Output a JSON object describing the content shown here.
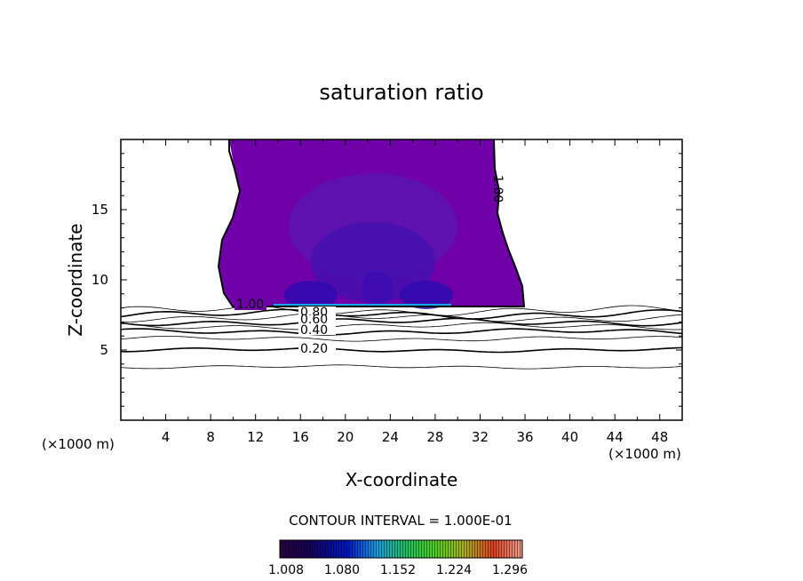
{
  "chart_data": {
    "type": "contour",
    "title": "saturation ratio",
    "xlabel": "X-coordinate",
    "ylabel": "Z-coordinate",
    "x_unit_label": "(×1000 m)",
    "z_unit_label": "(×1000 m)",
    "xlim": [
      0,
      50
    ],
    "ylim": [
      0,
      20
    ],
    "x_ticks": [
      4,
      8,
      12,
      16,
      20,
      24,
      28,
      32,
      36,
      40,
      44,
      48
    ],
    "y_ticks": [
      5,
      10,
      15
    ],
    "contour_interval_text": "CONTOUR INTERVAL = 1.000E-01",
    "contour_labels": [
      "1.00",
      "1.00",
      "0.80",
      "0.60",
      "0.40",
      "0.20"
    ],
    "colorbar": {
      "min": 1.008,
      "max": 1.32,
      "tick_labels": [
        "1.008",
        "1.080",
        "1.152",
        "1.224",
        "1.296"
      ]
    },
    "supersaturated_region": {
      "x_range": [
        10,
        36
      ],
      "z_range": [
        8.1,
        20
      ],
      "typical_value": 1.008,
      "maximum_near_base": 1.08
    },
    "contour_heights": [
      {
        "value": 0.1,
        "z": 3.8
      },
      {
        "value": 0.2,
        "z": 5.0
      },
      {
        "value": 0.3,
        "z": 5.8
      },
      {
        "value": 0.4,
        "z": 6.3
      },
      {
        "value": 0.5,
        "z": 6.7
      },
      {
        "value": 0.6,
        "z": 7.0
      },
      {
        "value": 0.7,
        "z": 7.3
      },
      {
        "value": 0.8,
        "z": 7.55
      },
      {
        "value": 0.9,
        "z": 7.8
      }
    ],
    "grid": false
  }
}
